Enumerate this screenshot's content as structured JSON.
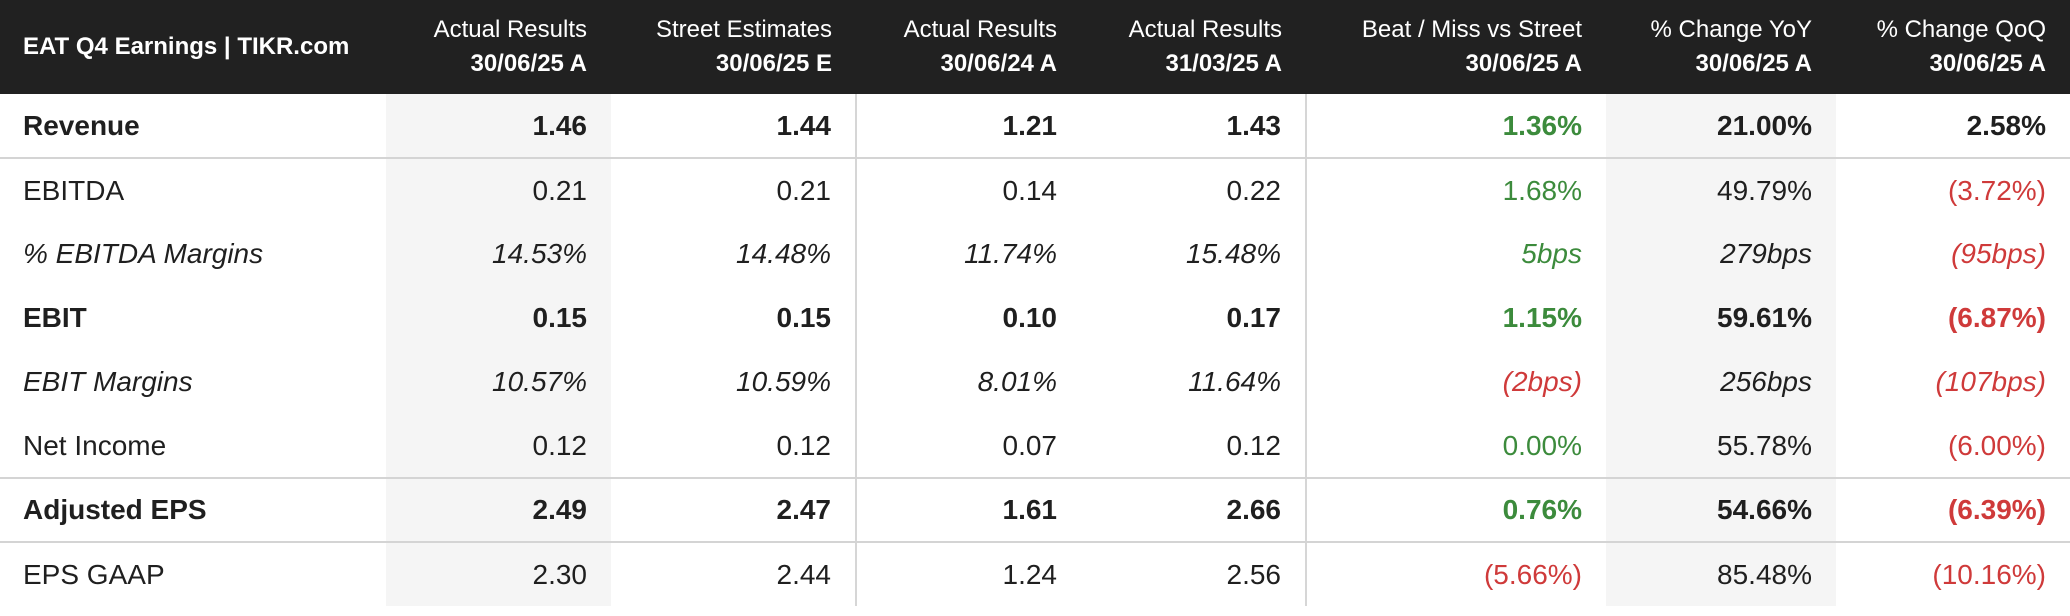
{
  "title": "EAT Q4 Earnings | TIKR.com",
  "columns": [
    {
      "line1": "Actual Results",
      "line2": "30/06/25 A"
    },
    {
      "line1": "Street Estimates",
      "line2": "30/06/25 E"
    },
    {
      "line1": "Actual Results",
      "line2": "30/06/24 A"
    },
    {
      "line1": "Actual Results",
      "line2": "31/03/25 A"
    },
    {
      "line1": "Beat / Miss vs Street",
      "line2": "30/06/25 A"
    },
    {
      "line1": "% Change YoY",
      "line2": "30/06/25 A"
    },
    {
      "line1": "% Change QoQ",
      "line2": "30/06/25 A"
    }
  ],
  "rows": [
    {
      "label": "Revenue",
      "values": [
        "1.46",
        "1.44",
        "1.21",
        "1.43",
        "1.36%",
        "21.00%",
        "2.58%"
      ]
    },
    {
      "label": "EBITDA",
      "values": [
        "0.21",
        "0.21",
        "0.14",
        "0.22",
        "1.68%",
        "49.79%",
        "(3.72%)"
      ]
    },
    {
      "label": "% EBITDA Margins",
      "values": [
        "14.53%",
        "14.48%",
        "11.74%",
        "15.48%",
        "5bps",
        "279bps",
        "(95bps)"
      ]
    },
    {
      "label": "EBIT",
      "values": [
        "0.15",
        "0.15",
        "0.10",
        "0.17",
        "1.15%",
        "59.61%",
        "(6.87%)"
      ]
    },
    {
      "label": "EBIT Margins",
      "values": [
        "10.57%",
        "10.59%",
        "8.01%",
        "11.64%",
        "(2bps)",
        "256bps",
        "(107bps)"
      ]
    },
    {
      "label": "Net Income",
      "values": [
        "0.12",
        "0.12",
        "0.07",
        "0.12",
        "0.00%",
        "55.78%",
        "(6.00%)"
      ]
    },
    {
      "label": "Adjusted EPS",
      "values": [
        "2.49",
        "2.47",
        "1.61",
        "2.66",
        "0.76%",
        "54.66%",
        "(6.39%)"
      ]
    },
    {
      "label": "EPS GAAP",
      "values": [
        "2.30",
        "2.44",
        "1.24",
        "2.56",
        "(5.66%)",
        "85.48%",
        "(10.16%)"
      ]
    }
  ],
  "colors": {
    "header_bg": "#212121",
    "positive": "#3c8b3c",
    "negative": "#cf3a3a",
    "shaded_column": "#f5f5f5"
  }
}
